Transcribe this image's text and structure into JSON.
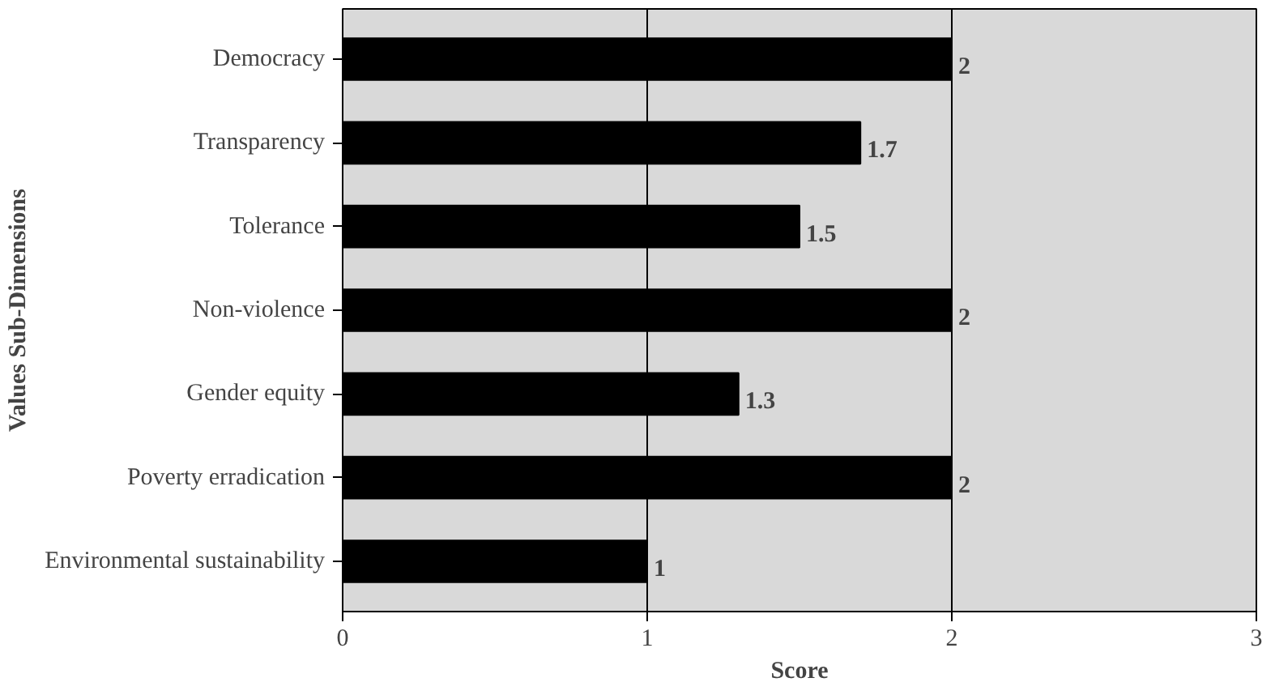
{
  "chart_data": {
    "type": "bar",
    "orientation": "horizontal",
    "xlabel": "Score",
    "ylabel": "Values Sub-Dimensions",
    "categories": [
      "Democracy",
      "Transparency",
      "Tolerance",
      "Non-violence",
      "Gender equity",
      "Poverty erradication",
      "Environmental sustainability"
    ],
    "values": [
      2,
      1.7,
      1.5,
      2,
      1.3,
      2,
      1
    ],
    "color": "#000000",
    "data_labels": true,
    "xlim": [
      0,
      3
    ],
    "xticks": [
      0,
      1,
      2,
      3
    ],
    "grid": "x"
  }
}
